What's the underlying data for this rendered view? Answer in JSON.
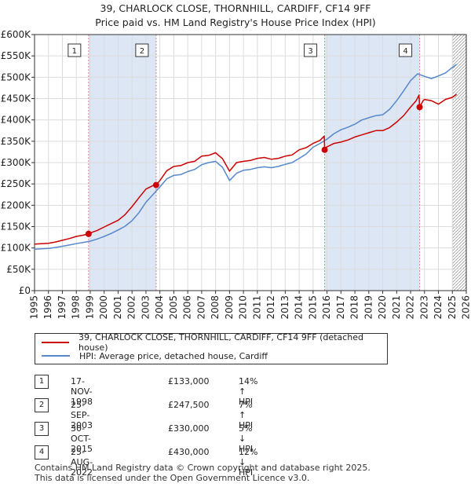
{
  "title_line1": "39, CHARLOCK CLOSE, THORNHILL, CARDIFF, CF14 9FF",
  "title_line2": "Price paid vs. HM Land Registry's House Price Index (HPI)",
  "legend": {
    "property": "39, CHARLOCK CLOSE, THORNHILL, CARDIFF, CF14 9FF (detached house)",
    "hpi": "HPI: Average price, detached house, Cardiff"
  },
  "colors": {
    "property": "#cc0000",
    "hpi": "#5588cc",
    "shade": "#dde6f5",
    "marker_line": "#dd8888"
  },
  "transactions": [
    {
      "num": "1",
      "date": "17-NOV-1998",
      "price": "£133,000",
      "hpi": "14% ↑ HPI"
    },
    {
      "num": "2",
      "date": "25-SEP-2003",
      "price": "£247,500",
      "hpi": "7% ↑ HPI"
    },
    {
      "num": "3",
      "date": "30-OCT-2015",
      "price": "£330,000",
      "hpi": "5% ↓ HPI"
    },
    {
      "num": "4",
      "date": "25-AUG-2022",
      "price": "£430,000",
      "hpi": "12% ↓ HPI"
    }
  ],
  "footer_line1": "Contains HM Land Registry data © Crown copyright and database right 2025.",
  "footer_line2": "This data is licensed under the Open Government Licence v3.0.",
  "chart_data": {
    "type": "line",
    "xlabel": "",
    "ylabel": "",
    "xlim": [
      1995,
      2026
    ],
    "ylim": [
      0,
      600000
    ],
    "x_ticks": [
      1995,
      1996,
      1997,
      1998,
      1999,
      2000,
      2001,
      2002,
      2003,
      2004,
      2005,
      2006,
      2007,
      2008,
      2009,
      2010,
      2011,
      2012,
      2013,
      2014,
      2015,
      2016,
      2017,
      2018,
      2019,
      2020,
      2021,
      2022,
      2023,
      2024,
      2025,
      2026
    ],
    "y_ticks": [
      0,
      50000,
      100000,
      150000,
      200000,
      250000,
      300000,
      350000,
      400000,
      450000,
      500000,
      550000,
      600000
    ],
    "y_tick_labels": [
      "£0",
      "£50K",
      "£100K",
      "£150K",
      "£200K",
      "£250K",
      "£300K",
      "£350K",
      "£400K",
      "£450K",
      "£500K",
      "£550K",
      "£600K"
    ],
    "sale_markers": [
      {
        "label": "1",
        "x": 1998.88,
        "y": 133000
      },
      {
        "label": "2",
        "x": 2003.73,
        "y": 247500
      },
      {
        "label": "3",
        "x": 2015.83,
        "y": 330000
      },
      {
        "label": "4",
        "x": 2022.65,
        "y": 430000
      }
    ],
    "shaded_ranges": [
      [
        1998.88,
        2003.73
      ],
      [
        2015.83,
        2022.65
      ]
    ],
    "hatched_from": 2025.0,
    "series": [
      {
        "name": "39, CHARLOCK CLOSE, THORNHILL, CARDIFF, CF14 9FF (detached house)",
        "x": [
          1995,
          1995.5,
          1996,
          1996.5,
          1997,
          1997.5,
          1998,
          1998.5,
          1998.88,
          1999,
          1999.5,
          2000,
          2000.5,
          2001,
          2001.5,
          2002,
          2002.5,
          2003,
          2003.5,
          2003.73,
          2004,
          2004.5,
          2005,
          2005.5,
          2006,
          2006.5,
          2007,
          2007.5,
          2008,
          2008.5,
          2009,
          2009.5,
          2010,
          2010.5,
          2011,
          2011.5,
          2012,
          2012.5,
          2013,
          2013.5,
          2014,
          2014.5,
          2015,
          2015.5,
          2015.8,
          2015.83,
          2016,
          2016.5,
          2017,
          2017.5,
          2018,
          2018.5,
          2019,
          2019.5,
          2020,
          2020.5,
          2021,
          2021.5,
          2022,
          2022.4,
          2022.6,
          2022.65,
          2022.9,
          2023,
          2023.5,
          2024,
          2024.5,
          2025,
          2025.3
        ],
        "y": [
          109000,
          110000,
          111000,
          114000,
          118000,
          122000,
          127000,
          130000,
          133000,
          135000,
          141000,
          149000,
          157000,
          165000,
          178000,
          197000,
          218000,
          238000,
          246000,
          247500,
          258000,
          281000,
          291000,
          293000,
          300000,
          303000,
          315000,
          317000,
          323000,
          309000,
          280000,
          300000,
          303000,
          305000,
          310000,
          312000,
          308000,
          310000,
          315000,
          318000,
          330000,
          335000,
          345000,
          352000,
          362000,
          330000,
          337000,
          345000,
          348000,
          353000,
          360000,
          365000,
          370000,
          375000,
          375000,
          382000,
          395000,
          410000,
          430000,
          445000,
          458000,
          430000,
          445000,
          448000,
          445000,
          437000,
          448000,
          453000,
          460000
        ]
      },
      {
        "name": "HPI: Average price, detached house, Cardiff",
        "x": [
          1995,
          1995.5,
          1996,
          1996.5,
          1997,
          1997.5,
          1998,
          1998.5,
          1999,
          1999.5,
          2000,
          2000.5,
          2001,
          2001.5,
          2002,
          2002.5,
          2003,
          2003.5,
          2004,
          2004.5,
          2005,
          2005.5,
          2006,
          2006.5,
          2007,
          2007.5,
          2008,
          2008.5,
          2009,
          2009.5,
          2010,
          2010.5,
          2011,
          2011.5,
          2012,
          2012.5,
          2013,
          2013.5,
          2014,
          2014.5,
          2015,
          2015.5,
          2016,
          2016.5,
          2017,
          2017.5,
          2018,
          2018.5,
          2019,
          2019.5,
          2020,
          2020.5,
          2021,
          2021.5,
          2022,
          2022.5,
          2023,
          2023.5,
          2024,
          2024.5,
          2025,
          2025.3
        ],
        "y": [
          97000,
          98000,
          99000,
          101000,
          104000,
          107000,
          110000,
          113000,
          116000,
          121000,
          127000,
          134000,
          142000,
          151000,
          164000,
          183000,
          207000,
          225000,
          243000,
          262000,
          270000,
          272000,
          279000,
          284000,
          295000,
          300000,
          303000,
          289000,
          258000,
          275000,
          282000,
          284000,
          288000,
          290000,
          288000,
          291000,
          296000,
          300000,
          310000,
          320000,
          336000,
          345000,
          355000,
          368000,
          377000,
          383000,
          390000,
          400000,
          405000,
          410000,
          412000,
          425000,
          445000,
          468000,
          492000,
          508000,
          502000,
          497000,
          503000,
          510000,
          523000,
          530000
        ]
      }
    ]
  }
}
